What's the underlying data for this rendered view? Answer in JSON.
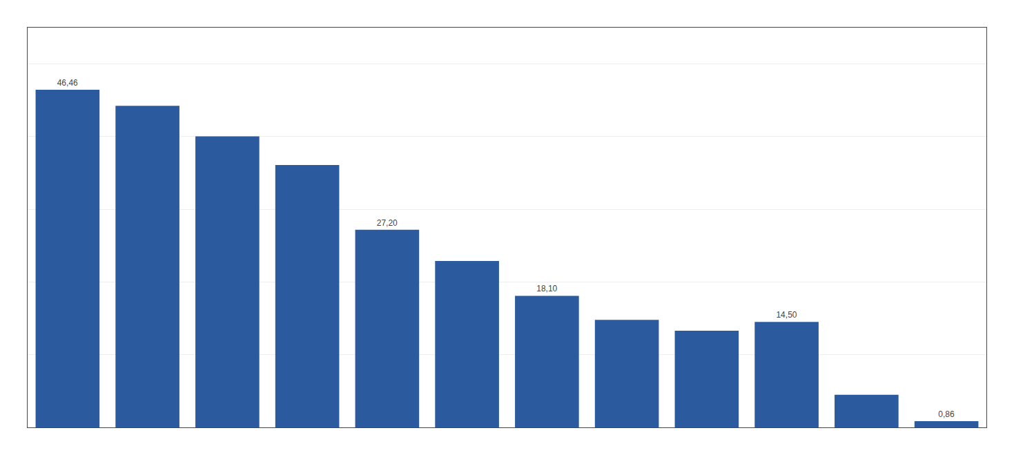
{
  "chart_data": {
    "type": "bar",
    "categories": [
      null,
      null,
      null,
      null,
      null,
      null,
      null,
      null,
      null,
      null,
      null,
      null
    ],
    "values": [
      46.46,
      44.24,
      40.03,
      36.09,
      27.2,
      22.9,
      18.1,
      14.8,
      13.3,
      14.5,
      4.5,
      0.86
    ],
    "value_labels": [
      "46,46",
      null,
      null,
      null,
      "27,20",
      null,
      "18,10",
      null,
      null,
      "14,50",
      null,
      "0,86"
    ],
    "data_labels": true,
    "color": "#2b5b9e",
    "ylim": [
      0,
      55
    ],
    "yticks": [
      0,
      10,
      20,
      30,
      40,
      50
    ],
    "grid": true,
    "tick_labels": false
  }
}
